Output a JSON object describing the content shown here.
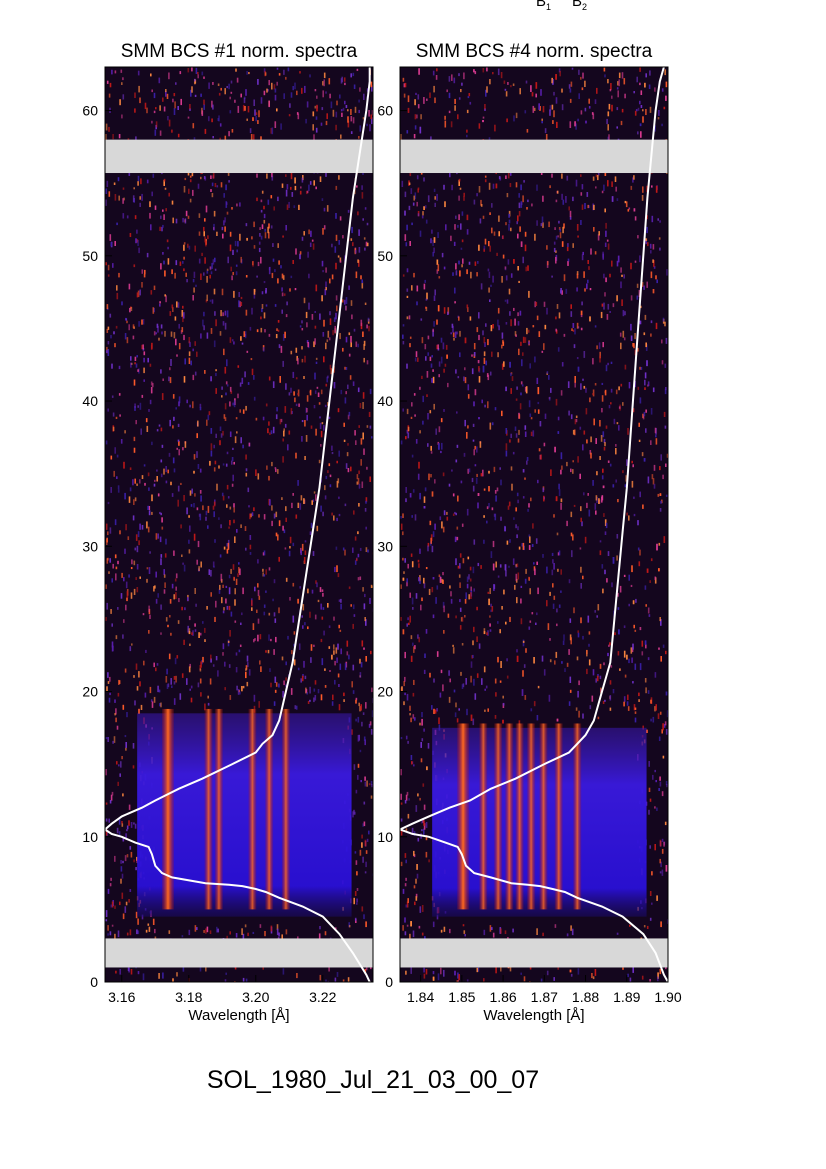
{
  "top_labels": [
    {
      "letter": "B",
      "sub": "1"
    },
    {
      "letter": "B",
      "sub": "2"
    }
  ],
  "caption": "SOL_1980_Jul_21_03_00_07",
  "colors": {
    "background": "#ffffff",
    "gap_band": "#d8d8d8",
    "curve": "#ffffff",
    "axis": "#000000"
  },
  "chart_data": [
    {
      "type": "heatmap",
      "title": "SMM BCS #1 norm. spectra",
      "xlabel": "Wavelength [Å]",
      "ylabel": "",
      "xlim": [
        3.155,
        3.235
      ],
      "ylim": [
        0,
        63
      ],
      "xticks": [
        "3.16",
        "3.18",
        "3.20",
        "3.22"
      ],
      "xtick_values": [
        3.16,
        3.18,
        3.2,
        3.22
      ],
      "yticks": [
        "0",
        "10",
        "20",
        "30",
        "40",
        "50",
        "60"
      ],
      "ytick_values": [
        0,
        10,
        20,
        30,
        40,
        50,
        60
      ],
      "data_gaps": [
        [
          1,
          3
        ],
        [
          55.7,
          58
        ]
      ],
      "emission_lines": [
        3.1738,
        3.1859,
        3.189,
        3.199,
        3.204,
        3.209
      ],
      "flare_time_range": [
        5,
        17
      ],
      "lightcurve": {
        "x": [
          3.234,
          3.233,
          3.229,
          3.225,
          3.22,
          3.214,
          3.207,
          3.203,
          3.2,
          3.196,
          3.192,
          3.185,
          3.175,
          3.172,
          3.17,
          3.169,
          3.168,
          3.164,
          3.16,
          3.157,
          3.155,
          3.157,
          3.16,
          3.166,
          3.17,
          3.177,
          3.184,
          3.193,
          3.2,
          3.202,
          3.205,
          3.207,
          3.209,
          3.211,
          3.213,
          3.215,
          3.217,
          3.219,
          3.221,
          3.223,
          3.225,
          3.227,
          3.229,
          3.231,
          3.233,
          3.234,
          3.234
        ],
        "y": [
          0,
          0.5,
          2,
          3.3,
          4.5,
          5.2,
          5.8,
          6.2,
          6.4,
          6.6,
          6.7,
          6.8,
          7.2,
          7.5,
          8.0,
          8.8,
          9.3,
          9.6,
          10.0,
          10.2,
          10.5,
          10.9,
          11.4,
          12.0,
          12.5,
          13.3,
          14.0,
          15.0,
          15.8,
          16.4,
          17.0,
          18.0,
          20.0,
          22.0,
          25.0,
          28.0,
          31.0,
          34.0,
          38.0,
          42.0,
          46.0,
          50.0,
          54.0,
          57.0,
          60.0,
          62.0,
          63.0
        ]
      }
    },
    {
      "type": "heatmap",
      "title": "SMM BCS #4 norm. spectra",
      "xlabel": "Wavelength [Å]",
      "ylabel": "",
      "xlim": [
        1.835,
        1.9
      ],
      "ylim": [
        0,
        63
      ],
      "xticks": [
        "1.84",
        "1.85",
        "1.86",
        "1.87",
        "1.88",
        "1.89",
        "1.90"
      ],
      "xtick_values": [
        1.84,
        1.85,
        1.86,
        1.87,
        1.88,
        1.89,
        1.9
      ],
      "yticks": [
        "0",
        "10",
        "20",
        "30",
        "40",
        "50",
        "60"
      ],
      "ytick_values": [
        0,
        10,
        20,
        30,
        40,
        50,
        60
      ],
      "data_gaps": [
        [
          1,
          3
        ],
        [
          55.7,
          58
        ]
      ],
      "emission_lines": [
        1.8503,
        1.8552,
        1.8588,
        1.8615,
        1.864,
        1.8668,
        1.8698,
        1.8735,
        1.878
      ],
      "flare_time_range": [
        5,
        16
      ],
      "lightcurve": {
        "x": [
          1.9,
          1.899,
          1.897,
          1.894,
          1.889,
          1.884,
          1.878,
          1.875,
          1.872,
          1.869,
          1.866,
          1.862,
          1.857,
          1.853,
          1.851,
          1.85,
          1.849,
          1.846,
          1.842,
          1.838,
          1.835,
          1.838,
          1.842,
          1.847,
          1.852,
          1.857,
          1.863,
          1.87,
          1.876,
          1.878,
          1.88,
          1.882,
          1.884,
          1.886,
          1.887,
          1.888,
          1.889,
          1.89,
          1.891,
          1.892,
          1.893,
          1.894,
          1.895,
          1.896,
          1.897,
          1.898,
          1.899
        ],
        "y": [
          0,
          0.5,
          2,
          3.3,
          4.5,
          5.2,
          5.8,
          6.2,
          6.4,
          6.6,
          6.7,
          6.8,
          7.2,
          7.5,
          8.0,
          8.8,
          9.3,
          9.6,
          10.0,
          10.2,
          10.5,
          10.9,
          11.4,
          12.0,
          12.5,
          13.3,
          14.0,
          15.0,
          15.8,
          16.4,
          17.0,
          18.0,
          20.0,
          22.0,
          25.0,
          28.0,
          31.0,
          34.0,
          38.0,
          42.0,
          46.0,
          50.0,
          54.0,
          57.0,
          60.0,
          62.0,
          63.0
        ]
      }
    }
  ]
}
